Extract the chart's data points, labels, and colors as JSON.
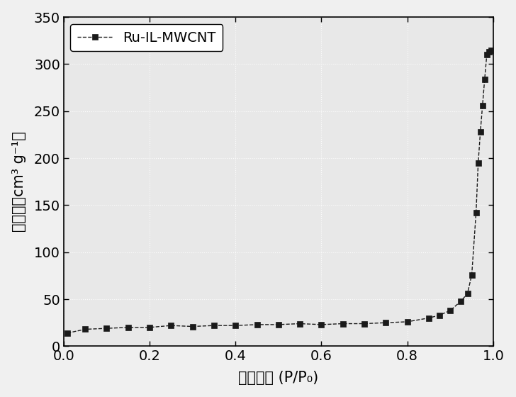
{
  "title": "",
  "xlabel_cn": "相对压力",
  "xlabel_suffix": " (P/P₀)",
  "ylabel_cn": "吸附量",
  "ylabel_suffix": "（cm³ g⁻¹）",
  "xlim": [
    0.0,
    1.0
  ],
  "ylim": [
    0,
    350
  ],
  "xticks": [
    0.0,
    0.2,
    0.4,
    0.6,
    0.8,
    1.0
  ],
  "yticks": [
    0,
    50,
    100,
    150,
    200,
    250,
    300,
    350
  ],
  "legend_label": "Ru-IL-MWCNT",
  "line_color": "#1a1a1a",
  "marker": "s",
  "marker_size": 6,
  "line_style": "--",
  "bg_color": "#e8e8e8",
  "x_data": [
    0.009,
    0.05,
    0.1,
    0.15,
    0.2,
    0.25,
    0.3,
    0.35,
    0.4,
    0.45,
    0.5,
    0.55,
    0.6,
    0.65,
    0.7,
    0.75,
    0.8,
    0.85,
    0.875,
    0.9,
    0.925,
    0.94,
    0.95,
    0.96,
    0.965,
    0.97,
    0.975,
    0.98,
    0.985,
    0.99,
    0.995
  ],
  "y_data": [
    14,
    18,
    19,
    20,
    20,
    22,
    21,
    22,
    22,
    23,
    23,
    24,
    23,
    24,
    24,
    25,
    26,
    30,
    33,
    38,
    48,
    56,
    76,
    142,
    195,
    228,
    256,
    284,
    310,
    313,
    315
  ]
}
